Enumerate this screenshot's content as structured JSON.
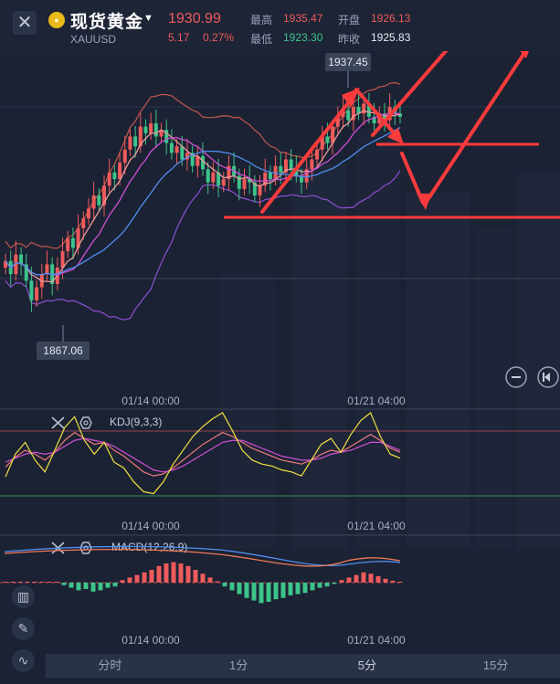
{
  "header": {
    "close_icon": "close-icon",
    "gold_icon": "gold-coin-icon",
    "title": "现货黄金",
    "symbol": "XAUUSD",
    "price": "1930.99",
    "change": "5.17",
    "change_pct": "0.27%",
    "high_label": "最高",
    "high": "1935.47",
    "open_label": "开盘",
    "open": "1926.13",
    "low_label": "最低",
    "low": "1923.30",
    "prev_close_label": "昨收",
    "prev_close": "1925.83"
  },
  "colors": {
    "up": "#ef5b5b",
    "down": "#3cc48a",
    "arrow": "#ff3b3b",
    "background": "#1b2233"
  },
  "tabs": [
    "分时",
    "1分",
    "5分",
    "15分"
  ],
  "side_tools": [
    "candles-icon",
    "pen-icon",
    "indicator-icon"
  ],
  "chart_data": [
    {
      "type": "candlestick",
      "title": "XAUUSD 5分",
      "x_ticks": [
        "01/14 00:00",
        "01/21 04:00"
      ],
      "overlays": [
        "Bollinger Bands",
        "Moving Averages"
      ],
      "annotations": {
        "max_label": "1937.45",
        "min_label": "1867.06"
      },
      "close": [
        1886,
        1882,
        1888,
        1885,
        1880,
        1874,
        1878,
        1882,
        1885,
        1879,
        1884,
        1889,
        1893,
        1890,
        1896,
        1899,
        1902,
        1906,
        1903,
        1909,
        1913,
        1911,
        1916,
        1920,
        1924,
        1921,
        1927,
        1925,
        1928,
        1924,
        1926,
        1922,
        1919,
        1921,
        1917,
        1919,
        1915,
        1918,
        1914,
        1910,
        1913,
        1909,
        1911,
        1915,
        1912,
        1908,
        1911,
        1910,
        1906,
        1909,
        1913,
        1911,
        1915,
        1913,
        1917,
        1914,
        1912,
        1910,
        1914,
        1917,
        1920,
        1924,
        1922,
        1927,
        1930,
        1932,
        1929,
        1933,
        1931,
        1934,
        1930,
        1928,
        1931,
        1929,
        1933,
        1931,
        1930
      ]
    },
    {
      "type": "line",
      "title": "KDJ(9,3,3)",
      "x_ticks": [
        "01/14 00:00",
        "01/21 04:00"
      ],
      "series": [
        {
          "name": "K",
          "color": "#ef7a7a",
          "values": [
            45,
            55,
            62,
            58,
            52,
            60,
            72,
            80,
            74,
            68,
            70,
            62,
            56,
            48,
            40,
            36,
            38,
            44,
            52,
            60,
            68,
            74,
            80,
            76,
            70,
            64,
            60,
            56,
            52,
            50,
            48,
            52,
            58,
            62,
            60,
            66,
            72,
            78,
            72,
            64,
            60
          ]
        },
        {
          "name": "D",
          "color": "#d04fd8",
          "values": [
            50,
            54,
            58,
            60,
            58,
            60,
            66,
            72,
            74,
            72,
            70,
            66,
            60,
            54,
            48,
            42,
            40,
            42,
            46,
            52,
            58,
            64,
            70,
            72,
            72,
            68,
            64,
            60,
            56,
            54,
            52,
            52,
            54,
            58,
            60,
            62,
            66,
            70,
            70,
            66,
            62
          ]
        },
        {
          "name": "J",
          "color": "#f0e040",
          "values": [
            35,
            58,
            70,
            52,
            40,
            62,
            85,
            96,
            72,
            58,
            70,
            50,
            44,
            30,
            20,
            18,
            30,
            48,
            62,
            76,
            86,
            94,
            100,
            82,
            62,
            52,
            48,
            46,
            42,
            40,
            36,
            52,
            68,
            74,
            60,
            78,
            92,
            100,
            76,
            58,
            54
          ]
        }
      ]
    },
    {
      "type": "bar",
      "title": "MACD(12,26,9)",
      "x_ticks": [
        "01/14 00:00",
        "01/21 04:00"
      ],
      "values": [
        0.0,
        0.0,
        0.0,
        0.0,
        0.0,
        0.0,
        0.0,
        0.0,
        -0.4,
        -0.8,
        -1.2,
        -1.0,
        -1.4,
        -1.2,
        -0.8,
        -0.6,
        0.4,
        0.8,
        1.2,
        1.6,
        2.0,
        2.6,
        3.0,
        3.2,
        3.0,
        2.6,
        2.0,
        1.4,
        0.8,
        0.2,
        -0.6,
        -1.2,
        -1.8,
        -2.4,
        -2.8,
        -3.2,
        -3.0,
        -2.6,
        -2.4,
        -2.0,
        -1.8,
        -1.6,
        -1.2,
        -0.8,
        -0.6,
        -0.2,
        0.4,
        0.8,
        1.2,
        1.6,
        1.4,
        1.0,
        0.6,
        0.3,
        0.1
      ]
    }
  ]
}
